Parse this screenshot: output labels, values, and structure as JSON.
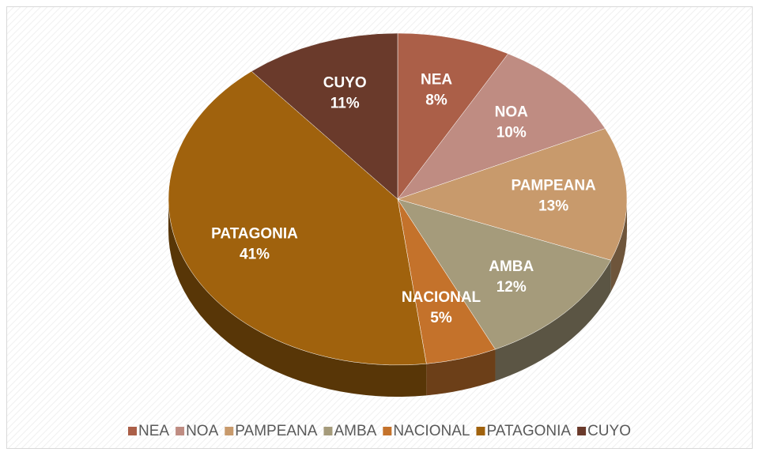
{
  "chart_data": {
    "type": "pie",
    "categories": [
      "NEA",
      "NOA",
      "PAMPEANA",
      "AMBA",
      "NACIONAL",
      "PATAGONIA",
      "CUYO"
    ],
    "values": [
      8,
      10,
      13,
      12,
      5,
      41,
      11
    ],
    "value_labels": [
      "8%",
      "10%",
      "13%",
      "12%",
      "5%",
      "41%",
      "11%"
    ],
    "colors": [
      "#ab5f48",
      "#bf8c82",
      "#c89a6c",
      "#a59b7b",
      "#c4722b",
      "#a0620d",
      "#6a3a2b"
    ],
    "legend": "bottom"
  }
}
